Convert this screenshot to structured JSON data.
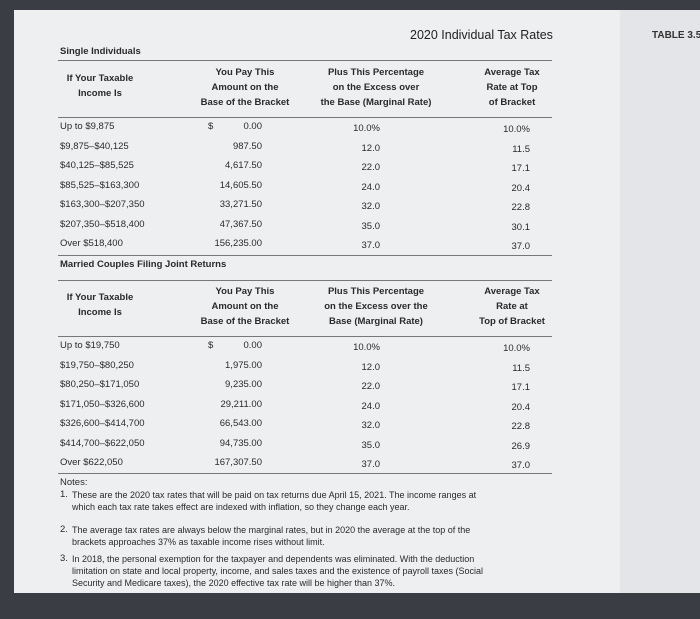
{
  "header": {
    "title": "2020 Individual Tax Rates",
    "table_label": "TABLE 3.5"
  },
  "sections": [
    {
      "title": "Single Individuals",
      "columns": [
        [
          "If Your Taxable",
          "Income Is"
        ],
        [
          "You Pay This",
          "Amount on the",
          "Base of the Bracket"
        ],
        [
          "Plus This Percentage",
          "on the Excess over",
          "the Base (Marginal Rate)"
        ],
        [
          "Average Tax",
          "Rate at Top",
          "of Bracket"
        ]
      ],
      "rows": [
        [
          "Up to $9,875",
          "$",
          "0.00",
          "10.0%",
          "10.0%"
        ],
        [
          "$9,875–$40,125",
          "",
          "987.50",
          "12.0",
          "11.5"
        ],
        [
          "$40,125–$85,525",
          "",
          "4,617.50",
          "22.0",
          "17.1"
        ],
        [
          "$85,525–$163,300",
          "",
          "14,605.50",
          "24.0",
          "20.4"
        ],
        [
          "$163,300–$207,350",
          "",
          "33,271.50",
          "32.0",
          "22.8"
        ],
        [
          "$207,350–$518,400",
          "",
          "47,367.50",
          "35.0",
          "30.1"
        ],
        [
          "Over $518,400",
          "",
          "156,235.00",
          "37.0",
          "37.0"
        ]
      ]
    },
    {
      "title": "Married Couples Filing Joint Returns",
      "columns": [
        [
          "If Your Taxable",
          "Income Is"
        ],
        [
          "You Pay This",
          "Amount on the",
          "Base of the Bracket"
        ],
        [
          "Plus This Percentage",
          "on the Excess over the",
          "Base (Marginal Rate)"
        ],
        [
          "Average Tax",
          "Rate at",
          "Top of Bracket"
        ]
      ],
      "rows": [
        [
          "Up to $19,750",
          "$",
          "0.00",
          "10.0%",
          "10.0%"
        ],
        [
          "$19,750–$80,250",
          "",
          "1,975.00",
          "12.0",
          "11.5"
        ],
        [
          "$80,250–$171,050",
          "",
          "9,235.00",
          "22.0",
          "17.1"
        ],
        [
          "$171,050–$326,600",
          "",
          "29,211.00",
          "24.0",
          "20.4"
        ],
        [
          "$326,600–$414,700",
          "",
          "66,543.00",
          "32.0",
          "22.8"
        ],
        [
          "$414,700–$622,050",
          "",
          "94,735.00",
          "35.0",
          "26.9"
        ],
        [
          "Over $622,050",
          "",
          "167,307.50",
          "37.0",
          "37.0"
        ]
      ]
    }
  ],
  "notes": {
    "label": "Notes:",
    "items": [
      {
        "number": "1.",
        "lines": [
          "These are the 2020 tax rates that will be paid on tax returns due April 15, 2021. The income ranges at",
          "which each tax rate takes effect are indexed with inflation, so they change each year."
        ]
      },
      {
        "number": "2.",
        "lines": [
          "The average tax rates are always below the marginal rates, but in 2020 the average at the top of the",
          "brackets approaches 37% as taxable income rises without limit."
        ]
      },
      {
        "number": "3.",
        "lines": [
          "In 2018, the personal exemption for the taxpayer and dependents was eliminated. With the deduction",
          "limitation on state and local property, income, and sales taxes and the existence of payroll taxes (Social",
          "Security and Medicare taxes), the 2020 effective tax rate will be higher than 37%."
        ]
      }
    ]
  }
}
